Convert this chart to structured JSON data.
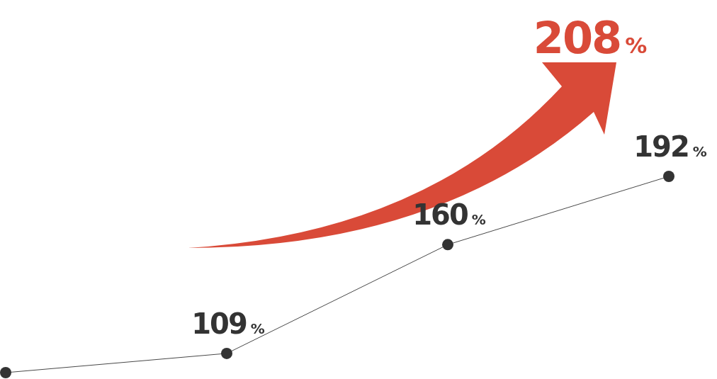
{
  "chart_data": {
    "type": "line",
    "categories": [
      null,
      null,
      null,
      null
    ],
    "values": [
      100,
      109,
      160,
      192
    ],
    "value_labels": [
      null,
      "109%",
      "160%",
      "192%"
    ],
    "color": "#333333",
    "marker": "circle",
    "annotations": [
      "208%"
    ]
  }
}
